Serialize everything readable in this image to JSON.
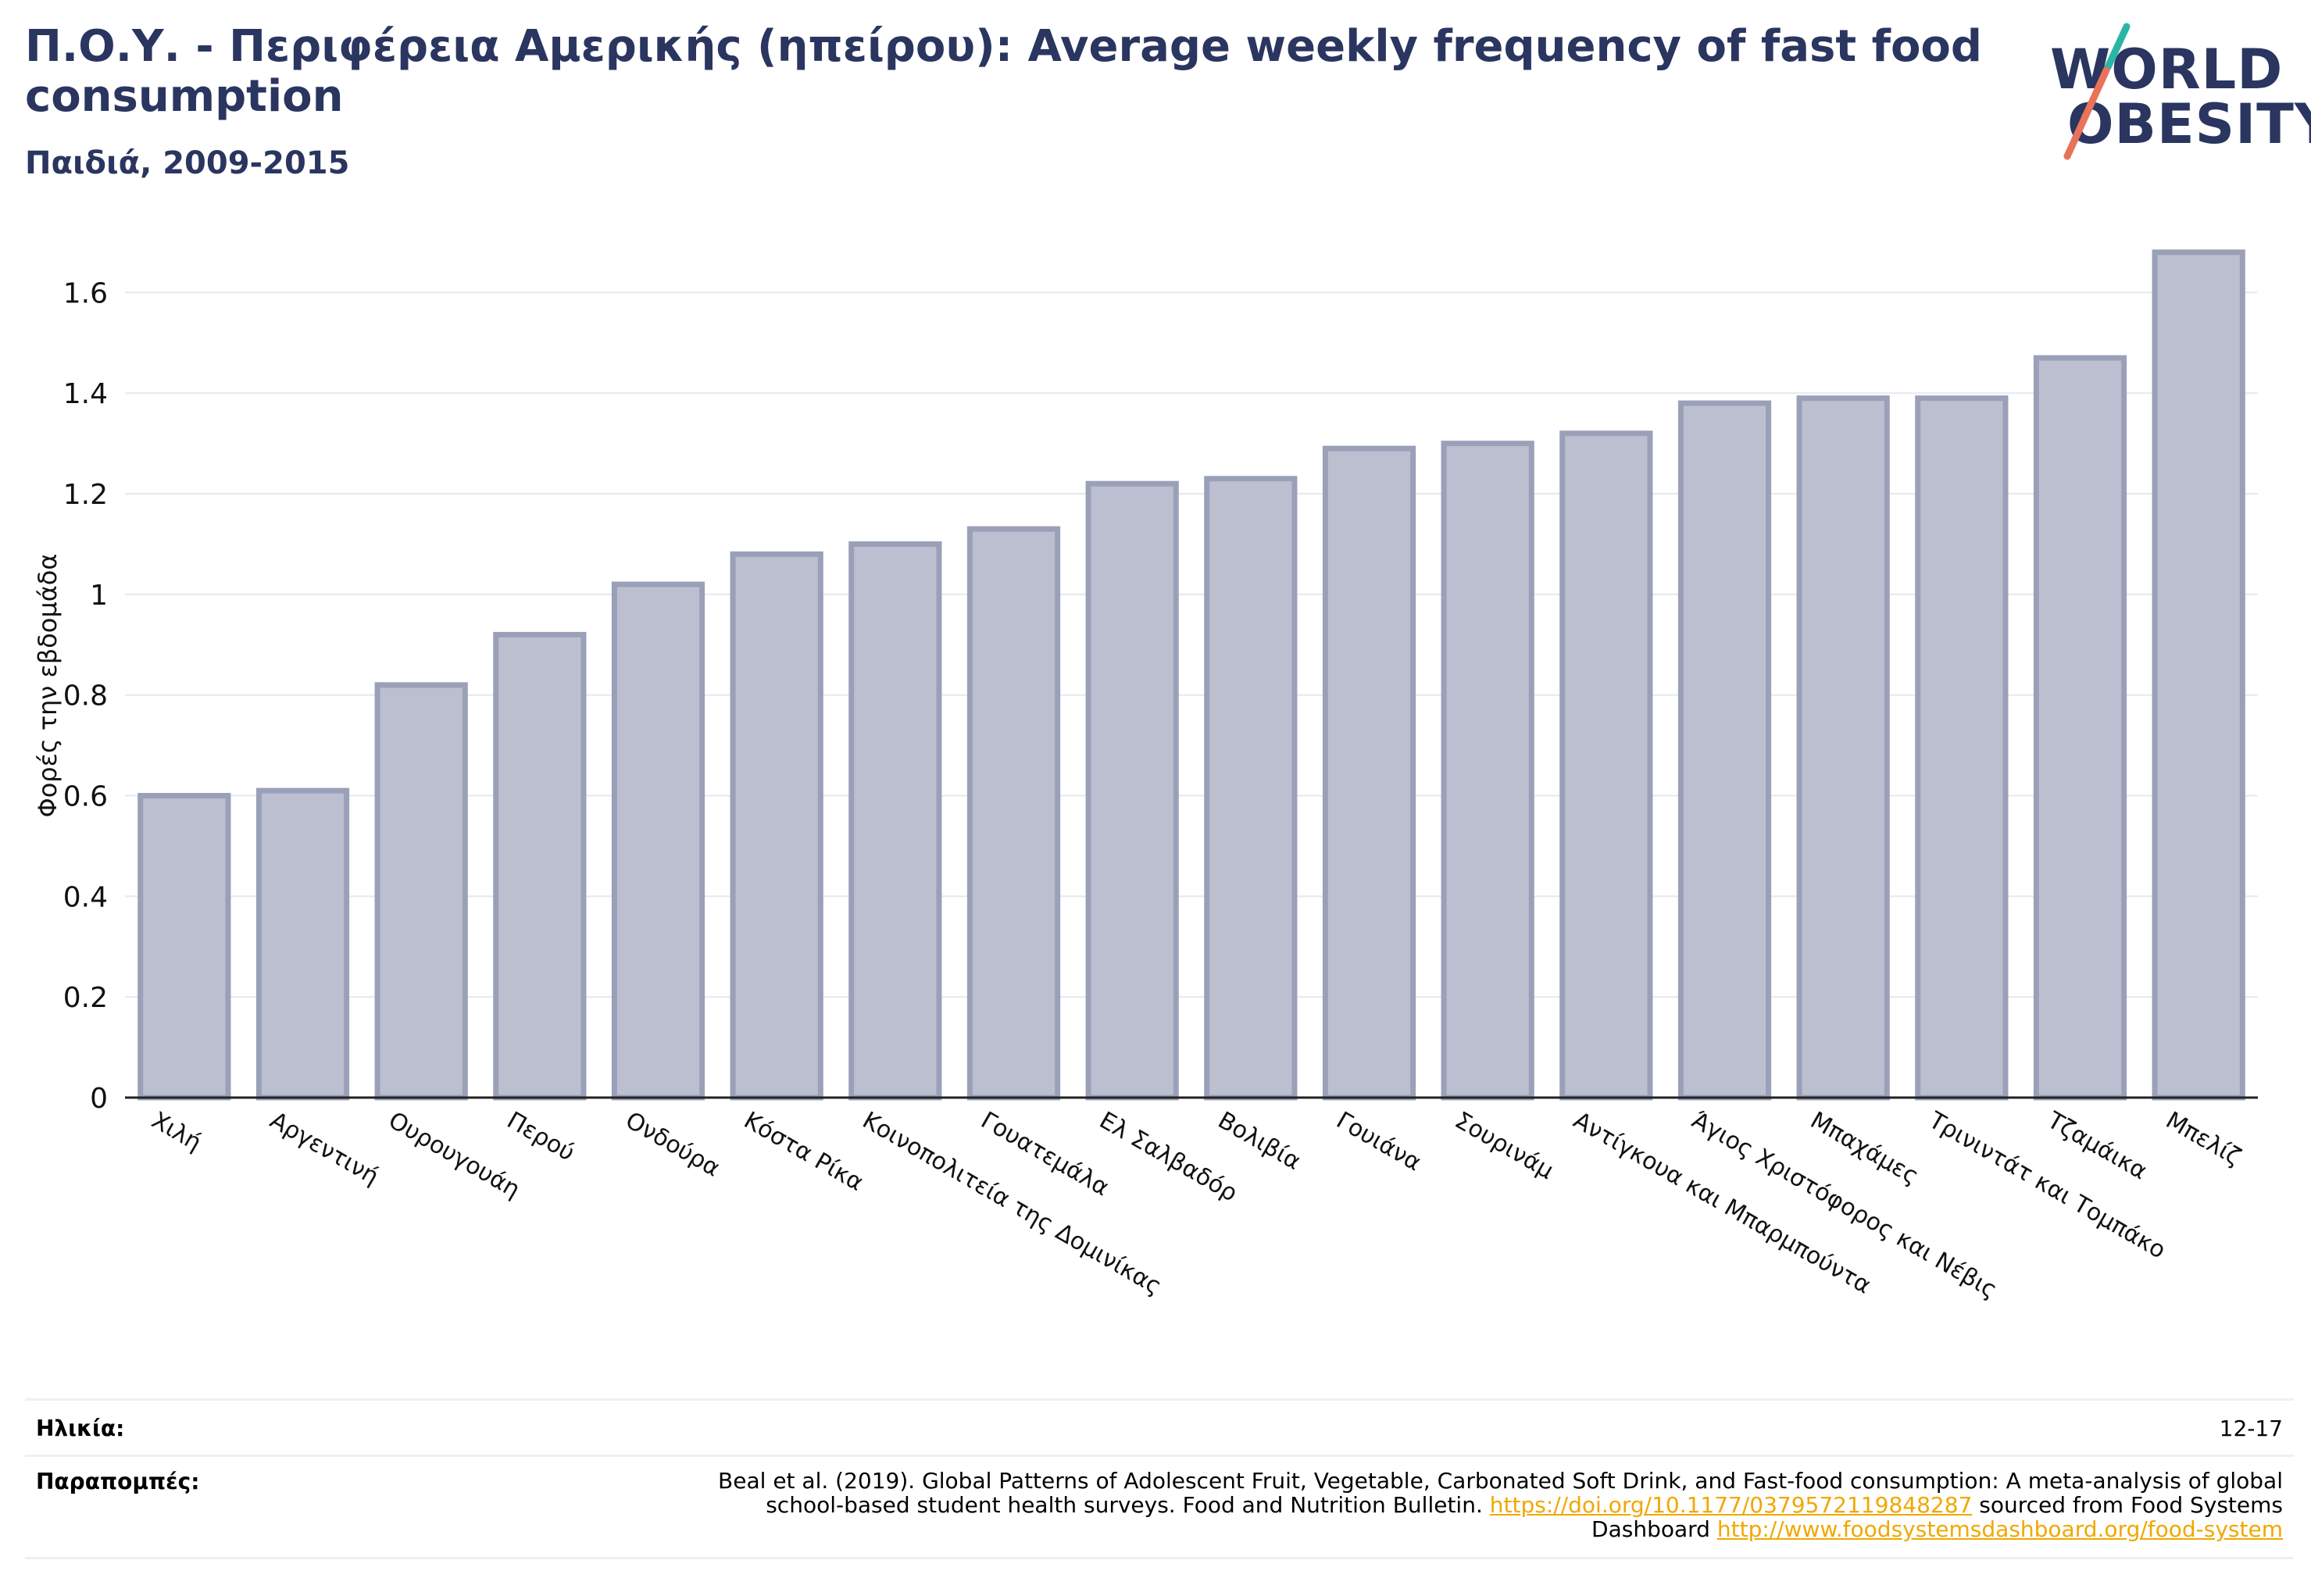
{
  "header": {
    "title": "Π.Ο.Υ. - Περιφέρεια Αμερικής (ηπείρου): Average weekly frequency of fast food consumption",
    "subtitle": "Παιδιά, 2009-2015"
  },
  "logo": {
    "line1": "WORLD",
    "line2": "OBESITY"
  },
  "colors": {
    "bar_fill": "#bcbfcf",
    "bar_stroke": "#9aa0b8",
    "title": "#2a3560",
    "grid": "#e6e8ef",
    "link": "#f0a800"
  },
  "chart_data": {
    "type": "bar",
    "ylabel": "Φορές την εβδομάδα",
    "ylim": [
      0,
      1.7
    ],
    "yticks": [
      0,
      0.2,
      0.4,
      0.6,
      0.8,
      1,
      1.2,
      1.4,
      1.6
    ],
    "ytick_labels": [
      "0",
      "0.2",
      "0.4",
      "0.6",
      "0.8",
      "1",
      "1.2",
      "1.4",
      "1.6"
    ],
    "grid": true,
    "categories": [
      "Χιλή",
      "Αργεντινή",
      "Ουρουγουάη",
      "Περού",
      "Ονδούρα",
      "Κόστα Ρίκα",
      "Κοινοπολιτεία της Δομινίκας",
      "Γουατεμάλα",
      "Ελ Σαλβαδόρ",
      "Βολιβία",
      "Γουιάνα",
      "Σουρινάμ",
      "Αντίγκουα και Μπαρμπούντα",
      "Άγιος Χριστόφορος και Νέβις",
      "Μπαχάμες",
      "Τρινιντάτ και Τομπάκο",
      "Τζαμάικα",
      "Μπελίζ"
    ],
    "values": [
      0.6,
      0.61,
      0.82,
      0.92,
      1.02,
      1.08,
      1.1,
      1.13,
      1.22,
      1.23,
      1.29,
      1.3,
      1.32,
      1.38,
      1.39,
      1.39,
      1.47,
      1.68
    ]
  },
  "meta": {
    "age_label": "Ηλικία:",
    "age_value": "12-17",
    "refs_label": "Παραπομπές:",
    "refs_text": "Beal et al. (2019). Global Patterns of Adolescent Fruit, Vegetable, Carbonated Soft Drink, and Fast-food consumption: A meta-analysis of global school-based student health surveys. Food and Nutrition Bulletin.",
    "refs_link1": "https://doi.org/10.1177/0379572119848287",
    "refs_mid": "sourced from Food Systems Dashboard",
    "refs_link2": "http://www.foodsystemsdashboard.org/food-system"
  }
}
